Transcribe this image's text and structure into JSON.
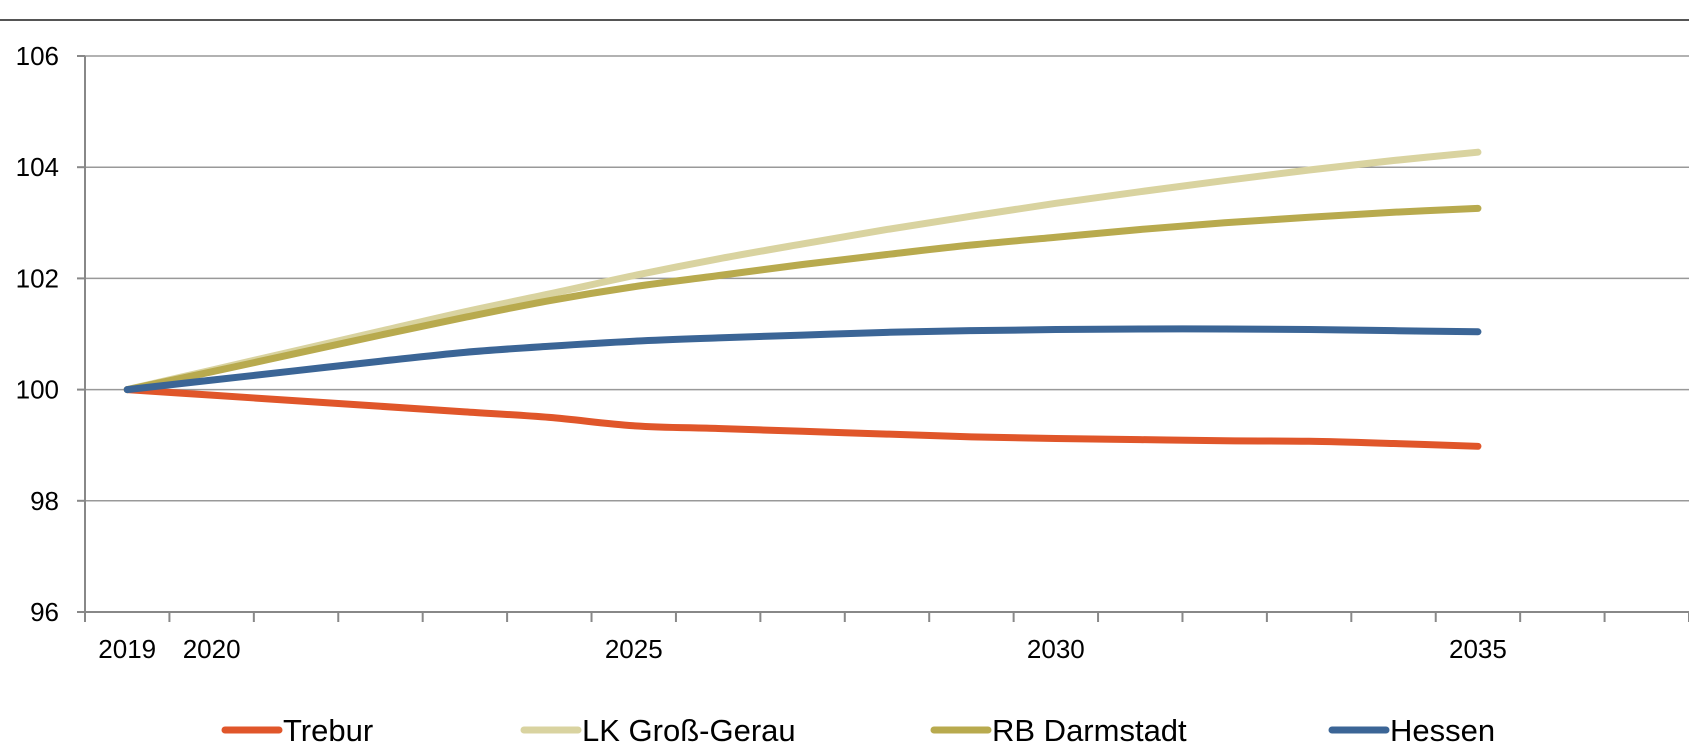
{
  "chart_data": {
    "type": "line",
    "x": [
      2019,
      2020,
      2021,
      2022,
      2023,
      2024,
      2025,
      2026,
      2027,
      2028,
      2029,
      2030,
      2031,
      2032,
      2033,
      2034,
      2035
    ],
    "x_tick_labels": [
      "2019",
      "2020",
      "2025",
      "2030",
      "2035"
    ],
    "xlim": [
      2018.5,
      2037.5
    ],
    "ylim": [
      96,
      106
    ],
    "y_ticks": [
      96,
      98,
      100,
      102,
      104,
      106
    ],
    "grid": true,
    "legend_position": "bottom",
    "series": [
      {
        "name": "Trebur",
        "color": "#e0562a",
        "values": [
          100,
          99.9,
          99.8,
          99.7,
          99.6,
          99.5,
          99.35,
          99.3,
          99.25,
          99.2,
          99.15,
          99.12,
          99.1,
          99.08,
          99.07,
          99.03,
          98.98
        ]
      },
      {
        "name": "LK Groß-Gerau",
        "color": "#d9d3a0",
        "values": [
          100,
          100.35,
          100.7,
          101.05,
          101.4,
          101.72,
          102.05,
          102.35,
          102.62,
          102.88,
          103.12,
          103.35,
          103.56,
          103.76,
          103.95,
          104.12,
          104.27
        ]
      },
      {
        "name": "RB Darmstadt",
        "color": "#b8aa4e",
        "values": [
          100,
          100.32,
          100.65,
          100.98,
          101.3,
          101.6,
          101.85,
          102.05,
          102.25,
          102.43,
          102.6,
          102.74,
          102.88,
          103.0,
          103.1,
          103.19,
          103.26
        ]
      },
      {
        "name": "Hessen",
        "color": "#3b6596",
        "values": [
          100,
          100.17,
          100.34,
          100.51,
          100.67,
          100.78,
          100.87,
          100.93,
          100.98,
          101.03,
          101.06,
          101.08,
          101.09,
          101.09,
          101.08,
          101.06,
          101.04
        ]
      }
    ]
  }
}
